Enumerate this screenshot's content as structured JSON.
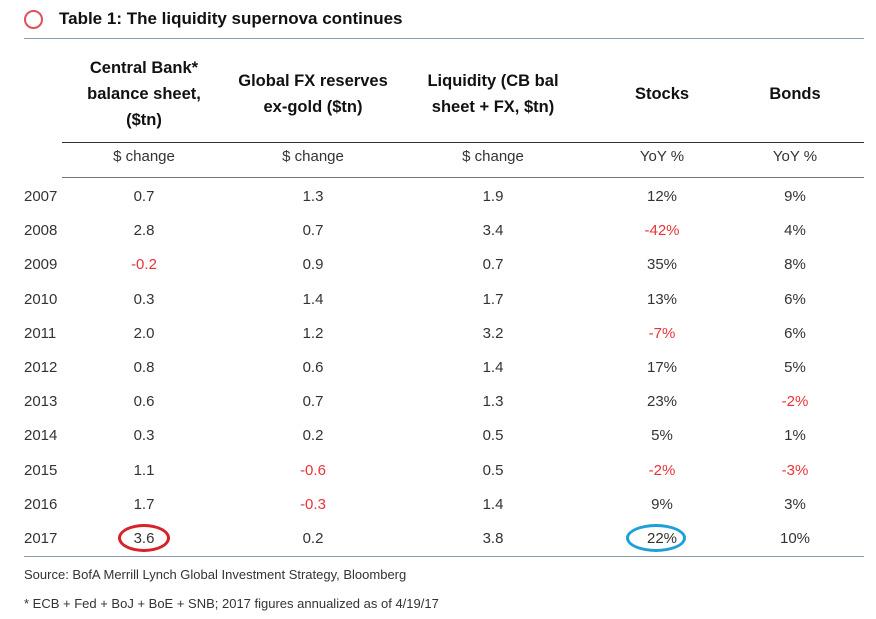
{
  "title": "Table 1: The liquidity supernova continues",
  "columns": [
    {
      "header": [
        "Central Bank*",
        "balance sheet,",
        "($tn)"
      ],
      "sub": "$ change"
    },
    {
      "header": [
        "Global FX reserves",
        "ex-gold ($tn)"
      ],
      "sub": "$ change"
    },
    {
      "header": [
        "Liquidity (CB bal",
        "sheet + FX, $tn)"
      ],
      "sub": "$ change"
    },
    {
      "header": [
        "Stocks"
      ],
      "sub": "YoY %"
    },
    {
      "header": [
        "Bonds"
      ],
      "sub": "YoY %"
    }
  ],
  "rows": [
    {
      "year": "2007",
      "values": [
        "0.7",
        "1.3",
        "1.9",
        "12%",
        "9%"
      ]
    },
    {
      "year": "2008",
      "values": [
        "2.8",
        "0.7",
        "3.4",
        "-42%",
        "4%"
      ]
    },
    {
      "year": "2009",
      "values": [
        "-0.2",
        "0.9",
        "0.7",
        "35%",
        "8%"
      ]
    },
    {
      "year": "2010",
      "values": [
        "0.3",
        "1.4",
        "1.7",
        "13%",
        "6%"
      ]
    },
    {
      "year": "2011",
      "values": [
        "2.0",
        "1.2",
        "3.2",
        "-7%",
        "6%"
      ]
    },
    {
      "year": "2012",
      "values": [
        "0.8",
        "0.6",
        "1.4",
        "17%",
        "5%"
      ]
    },
    {
      "year": "2013",
      "values": [
        "0.6",
        "0.7",
        "1.3",
        "23%",
        "-2%"
      ]
    },
    {
      "year": "2014",
      "values": [
        "0.3",
        "0.2",
        "0.5",
        "5%",
        "1%"
      ]
    },
    {
      "year": "2015",
      "values": [
        "1.1",
        "-0.6",
        "0.5",
        "-2%",
        "-3%"
      ]
    },
    {
      "year": "2016",
      "values": [
        "1.7",
        "-0.3",
        "1.4",
        "9%",
        "3%"
      ]
    },
    {
      "year": "2017",
      "values": [
        "3.6",
        "0.2",
        "3.8",
        "22%",
        "10%"
      ]
    }
  ],
  "source": "Source: BofA Merrill Lynch Global Investment Strategy, Bloomberg",
  "footnote": "* ECB + Fed + BoJ + BoE + SNB; 2017 figures annualized as of 4/19/17",
  "colors": {
    "negative": "#e8333a",
    "highlight_red": "#d6222a",
    "highlight_blue": "#1e9fd6"
  }
}
